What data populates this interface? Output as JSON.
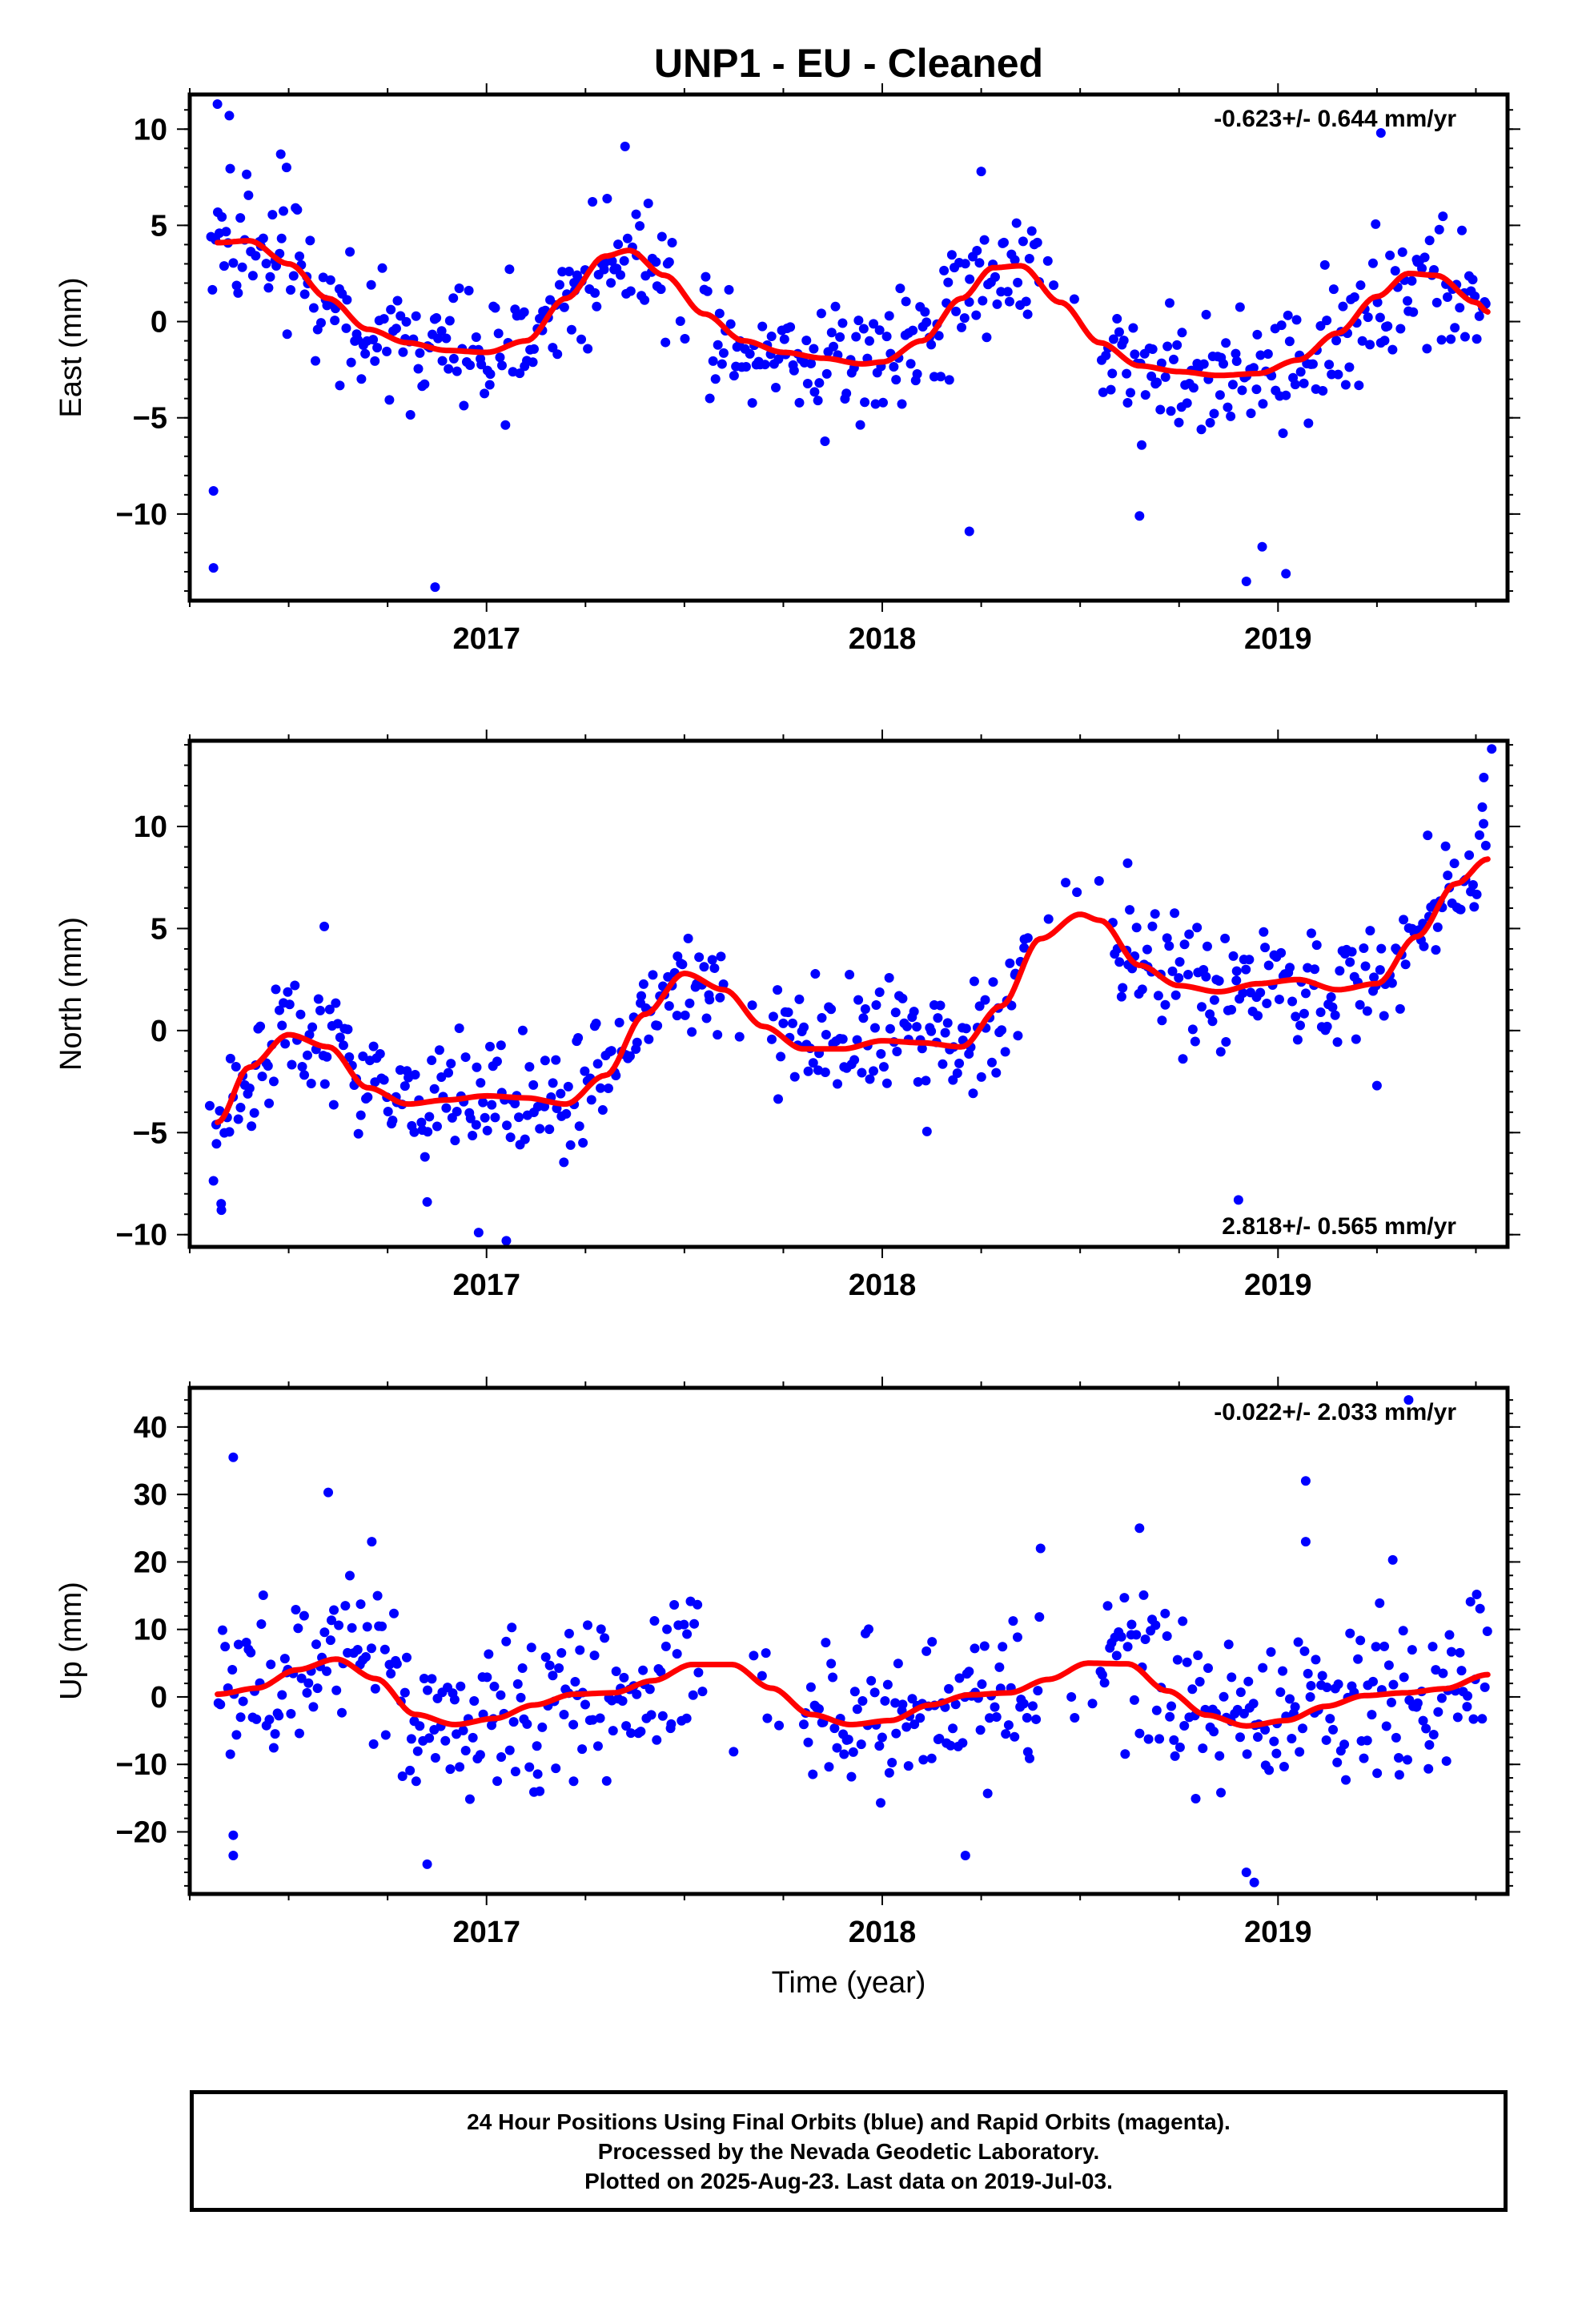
{
  "title": "UNP1  - EU - Cleaned",
  "x_axis_label": "Time (year)",
  "caption": [
    "24 Hour Positions Using Final Orbits (blue) and Rapid Orbits (magenta).",
    "Processed by the Nevada Geodetic Laboratory.",
    "Plotted on 2025-Aug-23. Last data on 2019-Jul-03."
  ],
  "colors": {
    "points": "#0000ff",
    "trend": "#ff0000",
    "frame": "#000000"
  },
  "chart_data": [
    {
      "type": "scatter",
      "name": "east",
      "ylabel": "East (mm)",
      "rate_label": "-0.623+/- 0.644 mm/yr",
      "rate_position": "top-right",
      "xlim": [
        2016.25,
        2019.58
      ],
      "ylim": [
        -14.5,
        11.8
      ],
      "xticks": [
        2017,
        2018,
        2019
      ],
      "yticks": [
        -10,
        -5,
        0,
        5,
        10
      ],
      "ytick_labels": [
        "−10",
        "−5",
        "0",
        "5",
        "10"
      ],
      "grid": false,
      "trend": {
        "x": [
          2016.32,
          2016.4,
          2016.5,
          2016.6,
          2016.7,
          2016.8,
          2016.9,
          2017.0,
          2017.1,
          2017.2,
          2017.3,
          2017.36,
          2017.45,
          2017.55,
          2017.65,
          2017.75,
          2017.85,
          2017.95,
          2018.0,
          2018.1,
          2018.2,
          2018.28,
          2018.35,
          2018.45,
          2018.55,
          2018.65,
          2018.75,
          2018.85,
          2018.95,
          2019.05,
          2019.15,
          2019.25,
          2019.33,
          2019.4,
          2019.5,
          2019.53
        ],
        "y": [
          4.1,
          4.2,
          3.0,
          1.2,
          -0.4,
          -1.1,
          -1.5,
          -1.6,
          -1.0,
          1.2,
          3.4,
          3.7,
          2.4,
          0.4,
          -1.0,
          -1.6,
          -1.9,
          -2.2,
          -2.1,
          -1.0,
          1.2,
          2.8,
          2.9,
          1.0,
          -1.1,
          -2.3,
          -2.6,
          -2.8,
          -2.7,
          -2.0,
          -0.6,
          1.3,
          2.5,
          2.4,
          1.0,
          0.5
        ]
      },
      "points": {
        "anchors_x": [
          2016.3,
          2016.36,
          2016.4,
          2016.5,
          2016.6,
          2016.7,
          2016.8,
          2016.9,
          2017.0,
          2017.1,
          2017.2,
          2017.3,
          2017.36,
          2017.45,
          2017.55,
          2017.65,
          2017.75,
          2017.85,
          2017.95,
          2018.0,
          2018.1,
          2018.2,
          2018.28,
          2018.35,
          2018.45,
          2018.55,
          2018.65,
          2018.75,
          2018.85,
          2018.95,
          2019.05,
          2019.15,
          2019.25,
          2019.33,
          2019.4,
          2019.5,
          2019.53
        ],
        "anchors_y": [
          4.1,
          4.2,
          4.2,
          3.0,
          1.2,
          -0.4,
          -1.1,
          -1.5,
          -1.6,
          -1.0,
          1.2,
          3.4,
          3.7,
          2.4,
          0.4,
          -1.0,
          -1.6,
          -1.9,
          -2.2,
          -2.1,
          -1.0,
          1.2,
          2.8,
          2.9,
          1.0,
          -1.1,
          -2.3,
          -2.6,
          -2.8,
          -2.7,
          -2.0,
          -0.6,
          1.3,
          2.5,
          2.4,
          1.0,
          0.5
        ],
        "spread": 1.7,
        "count": 560,
        "gaps": [
          [
            2017.47,
            2017.55
          ],
          [
            2018.4,
            2018.55
          ]
        ],
        "extra": [
          [
            2016.31,
            -12.8
          ],
          [
            2016.31,
            -8.8
          ],
          [
            2016.32,
            11.3
          ],
          [
            2016.35,
            10.7
          ],
          [
            2016.87,
            -13.8
          ],
          [
            2018.22,
            -10.9
          ],
          [
            2018.65,
            -10.1
          ],
          [
            2018.92,
            -13.5
          ],
          [
            2018.96,
            -11.7
          ],
          [
            2019.02,
            -13.1
          ],
          [
            2019.26,
            9.8
          ],
          [
            2017.35,
            9.1
          ],
          [
            2016.48,
            8.7
          ],
          [
            2018.25,
            7.8
          ]
        ]
      }
    },
    {
      "type": "scatter",
      "name": "north",
      "ylabel": "North (mm)",
      "rate_label": "2.818+/- 0.565 mm/yr",
      "rate_position": "bottom-right",
      "xlim": [
        2016.25,
        2019.58
      ],
      "ylim": [
        -10.6,
        14.2
      ],
      "xticks": [
        2017,
        2018,
        2019
      ],
      "yticks": [
        -10,
        -5,
        0,
        5,
        10
      ],
      "ytick_labels": [
        "−10",
        "−5",
        "0",
        "5",
        "10"
      ],
      "grid": false,
      "trend": {
        "x": [
          2016.32,
          2016.4,
          2016.5,
          2016.6,
          2016.7,
          2016.8,
          2016.9,
          2017.0,
          2017.1,
          2017.2,
          2017.3,
          2017.4,
          2017.5,
          2017.6,
          2017.7,
          2017.8,
          2017.9,
          2018.0,
          2018.1,
          2018.2,
          2018.3,
          2018.4,
          2018.5,
          2018.55,
          2018.65,
          2018.75,
          2018.85,
          2018.95,
          2019.05,
          2019.15,
          2019.25,
          2019.35,
          2019.45,
          2019.53
        ],
        "y": [
          -4.5,
          -1.8,
          -0.2,
          -0.8,
          -2.8,
          -3.6,
          -3.4,
          -3.2,
          -3.3,
          -3.6,
          -2.2,
          0.8,
          2.8,
          2.0,
          0.2,
          -0.9,
          -0.9,
          -0.5,
          -0.6,
          -0.8,
          1.2,
          4.5,
          5.7,
          5.4,
          3.2,
          2.2,
          1.9,
          2.3,
          2.5,
          2.0,
          2.3,
          4.6,
          7.2,
          8.4
        ]
      },
      "points": {
        "anchors_x": [
          2016.3,
          2016.4,
          2016.5,
          2016.6,
          2016.7,
          2016.8,
          2016.9,
          2017.0,
          2017.1,
          2017.2,
          2017.3,
          2017.4,
          2017.5,
          2017.6,
          2017.7,
          2017.8,
          2017.9,
          2018.0,
          2018.1,
          2018.2,
          2018.3,
          2018.4,
          2018.5,
          2018.55,
          2018.65,
          2018.75,
          2018.85,
          2018.95,
          2019.05,
          2019.15,
          2019.25,
          2019.35,
          2019.45,
          2019.53
        ],
        "anchors_y": [
          -6.2,
          -2.0,
          -0.2,
          -0.8,
          -2.8,
          -3.6,
          -3.4,
          -3.2,
          -3.3,
          -3.6,
          -2.2,
          0.8,
          2.8,
          2.0,
          0.2,
          -0.9,
          -0.9,
          -0.5,
          -0.6,
          -0.8,
          1.2,
          4.5,
          5.7,
          5.4,
          3.2,
          2.2,
          1.9,
          2.3,
          2.5,
          2.0,
          2.3,
          4.6,
          7.2,
          8.9
        ],
        "spread": 1.5,
        "count": 560,
        "gaps": [
          [
            2017.6,
            2017.72
          ],
          [
            2018.37,
            2018.58
          ]
        ],
        "extra": [
          [
            2017.05,
            -10.3
          ],
          [
            2016.98,
            -9.9
          ],
          [
            2016.33,
            -8.8
          ],
          [
            2018.9,
            -8.3
          ],
          [
            2019.54,
            13.8
          ],
          [
            2019.52,
            12.4
          ],
          [
            2016.59,
            5.1
          ],
          [
            2018.62,
            8.2
          ],
          [
            2019.25,
            -2.7
          ],
          [
            2016.85,
            -8.4
          ]
        ]
      }
    },
    {
      "type": "scatter",
      "name": "up",
      "ylabel": "Up (mm)",
      "rate_label": "-0.022+/- 2.033 mm/yr",
      "rate_position": "top-right",
      "xlim": [
        2016.25,
        2019.58
      ],
      "ylim": [
        -29.2,
        45.8
      ],
      "xticks": [
        2017,
        2018,
        2019
      ],
      "yticks": [
        -20,
        -10,
        0,
        10,
        20,
        30,
        40
      ],
      "ytick_labels": [
        "−20",
        "−10",
        "0",
        "10",
        "20",
        "30",
        "40"
      ],
      "grid": false,
      "trend": {
        "x": [
          2016.32,
          2016.42,
          2016.52,
          2016.62,
          2016.72,
          2016.82,
          2016.92,
          2017.02,
          2017.12,
          2017.22,
          2017.32,
          2017.42,
          2017.52,
          2017.62,
          2017.72,
          2017.82,
          2017.92,
          2018.02,
          2018.12,
          2018.22,
          2018.32,
          2018.42,
          2018.52,
          2018.62,
          2018.72,
          2018.82,
          2018.92,
          2019.02,
          2019.12,
          2019.22,
          2019.32,
          2019.42,
          2019.53
        ],
        "y": [
          0.4,
          1.3,
          4.0,
          5.6,
          2.7,
          -2.6,
          -4.1,
          -3.2,
          -1.2,
          0.4,
          0.6,
          2.4,
          4.8,
          4.8,
          1.3,
          -2.6,
          -4.1,
          -3.5,
          -1.2,
          0.3,
          0.6,
          2.6,
          5.0,
          4.9,
          0.9,
          -2.7,
          -4.3,
          -3.5,
          -1.4,
          0.2,
          0.6,
          1.2,
          3.3
        ]
      },
      "points": {
        "anchors_x": [
          2016.32,
          2016.42,
          2016.52,
          2016.62,
          2016.72,
          2016.82,
          2016.92,
          2017.02,
          2017.12,
          2017.22,
          2017.32,
          2017.42,
          2017.52,
          2017.62,
          2017.72,
          2017.82,
          2017.92,
          2018.02,
          2018.12,
          2018.22,
          2018.32,
          2018.42,
          2018.52,
          2018.62,
          2018.72,
          2018.82,
          2018.92,
          2019.02,
          2019.12,
          2019.22,
          2019.32,
          2019.42,
          2019.53
        ],
        "anchors_y": [
          0.4,
          1.3,
          4.0,
          5.6,
          2.7,
          -2.6,
          -4.1,
          -3.2,
          -1.2,
          0.4,
          0.6,
          2.4,
          4.8,
          4.8,
          1.3,
          -2.6,
          -4.1,
          -3.5,
          -1.2,
          0.3,
          0.6,
          2.6,
          5.0,
          4.9,
          0.9,
          -2.7,
          -4.3,
          -3.5,
          -1.4,
          0.2,
          0.6,
          1.2,
          3.3
        ],
        "spread": 5.8,
        "count": 560,
        "gaps": [
          [
            2017.55,
            2017.8
          ],
          [
            2018.4,
            2018.55
          ]
        ],
        "extra": [
          [
            2016.36,
            35.5
          ],
          [
            2016.36,
            -20.5
          ],
          [
            2016.36,
            -23.5
          ],
          [
            2016.6,
            30.3
          ],
          [
            2016.71,
            23.0
          ],
          [
            2016.85,
            -24.8
          ],
          [
            2018.4,
            22.0
          ],
          [
            2018.65,
            25.0
          ],
          [
            2018.92,
            -26.0
          ],
          [
            2018.94,
            -27.5
          ],
          [
            2019.07,
            32.0
          ],
          [
            2019.07,
            23.0
          ],
          [
            2019.33,
            44.0
          ],
          [
            2019.29,
            20.3
          ],
          [
            2018.21,
            -23.5
          ],
          [
            2017.22,
            -12.5
          ]
        ]
      }
    }
  ]
}
